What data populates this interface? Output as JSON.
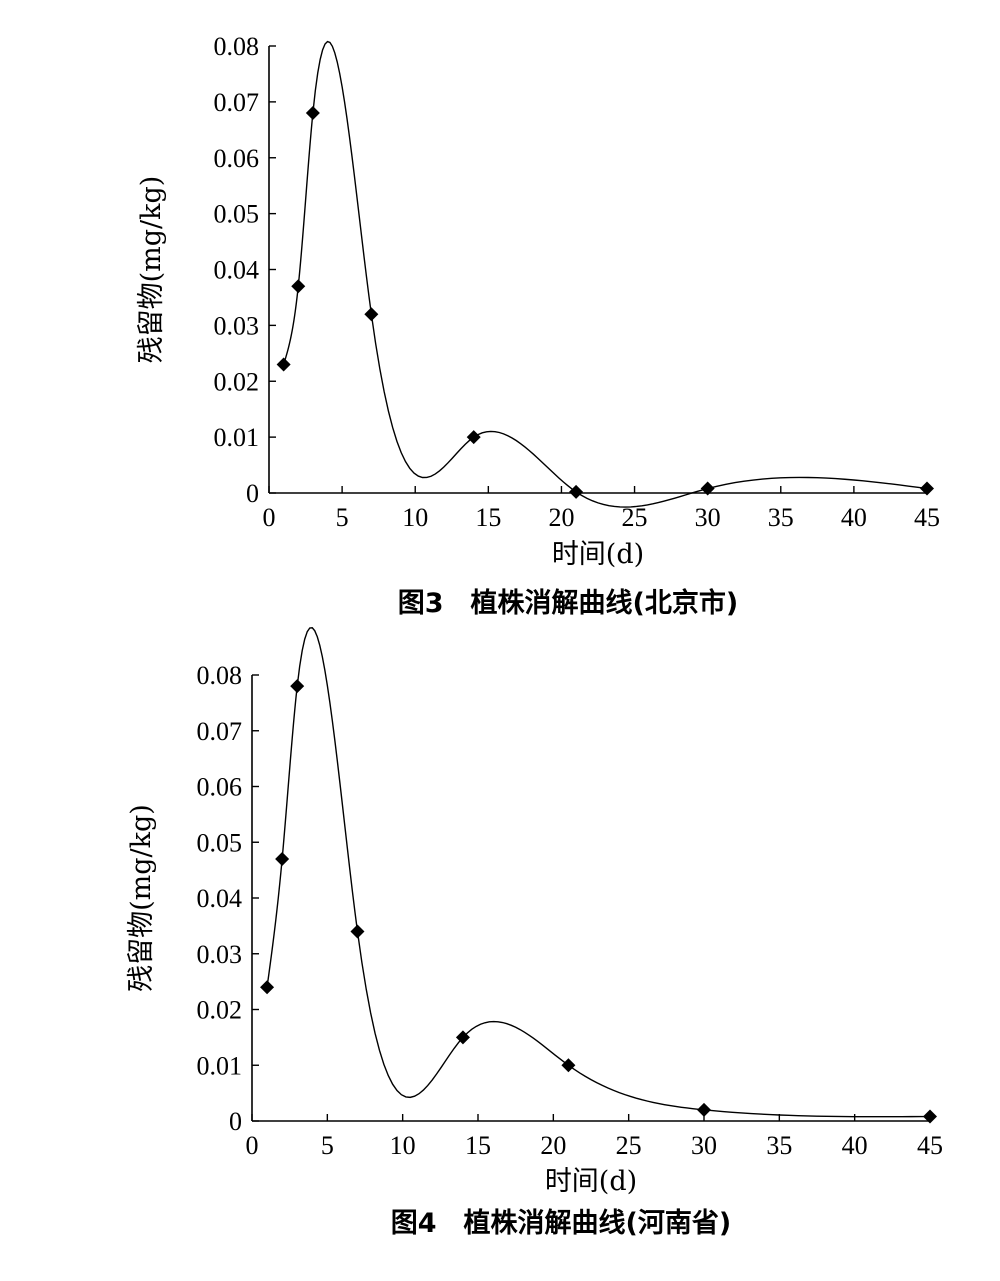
{
  "chart_data": [
    {
      "type": "line",
      "caption": "图3　植株消解曲线(北京市)",
      "xlabel": "时间(d)",
      "ylabel": "残留物(mg/kg)",
      "xlim": [
        0,
        45
      ],
      "ylim": [
        0,
        0.08
      ],
      "xticks": [
        "0",
        "5",
        "10",
        "15",
        "20",
        "25",
        "30",
        "35",
        "40",
        "45"
      ],
      "yticks": [
        "0",
        "0.01",
        "0.02",
        "0.03",
        "0.04",
        "0.05",
        "0.06",
        "0.07",
        "0.08"
      ],
      "grid": false,
      "legend": "none",
      "marker": "diamond",
      "x": [
        1,
        2,
        3,
        7,
        14,
        21,
        30,
        45
      ],
      "y": [
        0.023,
        0.037,
        0.068,
        0.032,
        0.01,
        0.0002,
        0.0008,
        0.0008
      ]
    },
    {
      "type": "line",
      "caption": "图4　植株消解曲线(河南省)",
      "xlabel": "时间(d)",
      "ylabel": "残留物(mg/kg)",
      "xlim": [
        0,
        45
      ],
      "ylim": [
        0,
        0.08
      ],
      "xticks": [
        "0",
        "5",
        "10",
        "15",
        "20",
        "25",
        "30",
        "35",
        "40",
        "45"
      ],
      "yticks": [
        "0",
        "0.01",
        "0.02",
        "0.03",
        "0.04",
        "0.05",
        "0.06",
        "0.07",
        "0.08"
      ],
      "grid": false,
      "legend": "none",
      "marker": "diamond",
      "x": [
        1,
        2,
        3,
        7,
        14,
        21,
        30,
        45
      ],
      "y": [
        0.024,
        0.047,
        0.078,
        0.034,
        0.015,
        0.01,
        0.002,
        0.0008
      ]
    }
  ]
}
